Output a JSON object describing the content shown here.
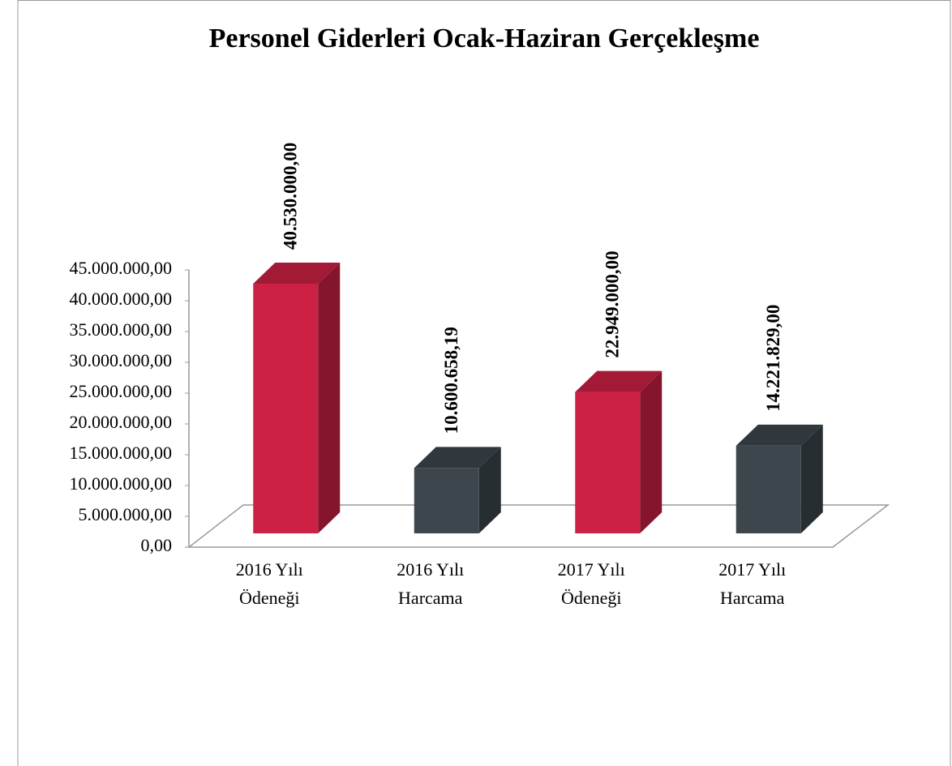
{
  "chart_data": {
    "type": "bar3d",
    "title": "Personel Giderleri Ocak-Haziran Gerçekleşme",
    "categories": [
      [
        "2016 Yılı",
        "Ödeneği"
      ],
      [
        "2016 Yılı",
        "Harcama"
      ],
      [
        "2017 Yılı",
        "Ödeneği"
      ],
      [
        "2017 Yılı",
        "Harcama"
      ]
    ],
    "values": [
      40530000,
      10600658.19,
      22949000,
      14221829
    ],
    "value_labels": [
      "40.530.000,00",
      "10.600.658,19",
      "22.949.000,00",
      "14.221.829,00"
    ],
    "colors": [
      "#cc2045",
      "#3c464c",
      "#cc2045",
      "#3c464c"
    ],
    "ylim": [
      0,
      45000000
    ],
    "yticks": [
      {
        "value": 0,
        "label": "0,00"
      },
      {
        "value": 5000000,
        "label": "5.000.000,00"
      },
      {
        "value": 10000000,
        "label": "10.000.000,00"
      },
      {
        "value": 15000000,
        "label": "15.000.000,00"
      },
      {
        "value": 20000000,
        "label": "20.000.000,00"
      },
      {
        "value": 25000000,
        "label": "25.000.000,00"
      },
      {
        "value": 30000000,
        "label": "30.000.000,00"
      },
      {
        "value": 35000000,
        "label": "35.000.000,00"
      },
      {
        "value": 40000000,
        "label": "40.000.000,00"
      },
      {
        "value": 45000000,
        "label": "45.000.000,00"
      }
    ]
  }
}
